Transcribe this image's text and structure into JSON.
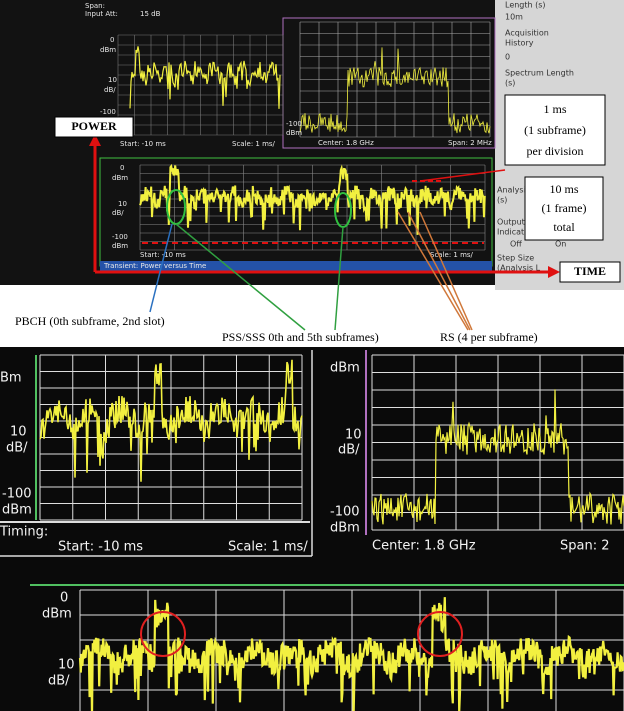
{
  "top_screen": {
    "header": {
      "span": "Span:",
      "input_att": "Input Att:",
      "att_value": "15 dB"
    },
    "side_panel": [
      "Length (s)",
      "10m",
      "Acquisition",
      "History",
      "0",
      "Spectrum Length",
      "(s)",
      "Analysis",
      "(s)",
      "Output",
      "Indicator",
      "Off",
      "On",
      "Step Size",
      "(Analysis L"
    ],
    "left_plot": {
      "y_top": "0",
      "y_top_unit": "dBm",
      "scale": "10",
      "scale_unit": "dB/",
      "y_bottom": "-100",
      "start": "Start: -10 ms",
      "scale_label": "Scale: 1 ms/"
    },
    "spectrum_plot": {
      "y_bottom": "-100",
      "y_bottom_unit": "dBm",
      "center": "Center: 1.8 GHz",
      "span": "Span: 2 MHz"
    },
    "pvt_plot": {
      "y_top": "0",
      "y_top_unit": "dBm",
      "scale": "10",
      "scale_unit": "dB/",
      "y_bottom": "-100",
      "y_bottom_unit": "dBm",
      "start": "Start: -10 ms",
      "scale_label": "Scale: 1 ms/",
      "status": "Transient: Power versus Time"
    }
  },
  "annotations": {
    "power": "POWER",
    "time": "TIME",
    "division": [
      "1 ms",
      "(1 subframe)",
      "per division"
    ],
    "total": [
      "10 ms",
      "(1 frame)",
      "total"
    ],
    "pbch": "PBCH (0th subframe, 2nd slot)",
    "pss_sss": "PSS/SSS 0th and 5th subframes)",
    "rs": "RS (4 per subframe)"
  },
  "zoom": {
    "left_plot": {
      "y_top_unit": "Bm",
      "scale": "10",
      "scale_unit": "dB/",
      "y_bottom": "-100",
      "y_bottom_unit": "dBm",
      "timing": "Timing:",
      "start": "Start: -10 ms",
      "scale_label": "Scale: 1 ms/"
    },
    "spectrum_plot": {
      "y_top_unit": "dBm",
      "scale": "10",
      "scale_unit": "dB/",
      "y_bottom": "-100",
      "y_bottom_unit": "dBm",
      "center": "Center: 1.8 GHz",
      "span": "Span: 2"
    },
    "pvt_plot": {
      "y_top": "0",
      "y_top_unit": "dBm",
      "scale": "10",
      "scale_unit": "dB/"
    }
  }
}
